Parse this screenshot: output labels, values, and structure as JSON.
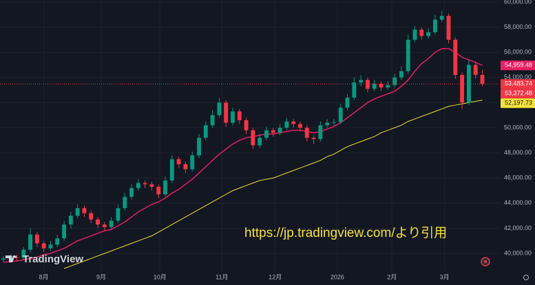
{
  "chart_data": {
    "type": "candlestick",
    "brand": "TradingView",
    "annotation": "https://jp.tradingview.com/より引用",
    "x": [
      0,
      1,
      2,
      3,
      4,
      5,
      6,
      7,
      8,
      9,
      10,
      11,
      12,
      13,
      14,
      15,
      16,
      17,
      18,
      19,
      20,
      21,
      22,
      23,
      24,
      25,
      26,
      27,
      28,
      29,
      30,
      31,
      32,
      33,
      34,
      35,
      36,
      37,
      38,
      39,
      40,
      41,
      42,
      43,
      44,
      45,
      46,
      47,
      48,
      49,
      50,
      51,
      52,
      53,
      54,
      55,
      56,
      57,
      58,
      59,
      60,
      61,
      62,
      63,
      64,
      65,
      66,
      67,
      68,
      69,
      70,
      71
    ],
    "open": [
      39500,
      39600,
      39700,
      39650,
      40300,
      41500,
      40800,
      40400,
      40700,
      41200,
      42300,
      43000,
      43600,
      43200,
      42700,
      42300,
      42100,
      42600,
      43600,
      44500,
      45200,
      45600,
      45500,
      45300,
      44700,
      45800,
      47500,
      47100,
      46700,
      47800,
      49200,
      50200,
      51000,
      52000,
      50400,
      51300,
      50600,
      49800,
      48600,
      49200,
      49800,
      49600,
      50000,
      50500,
      50300,
      50000,
      49200,
      49100,
      50200,
      50400,
      50450,
      51600,
      52400,
      53600,
      53800,
      53100,
      53500,
      53200,
      53400,
      54000,
      54500,
      57000,
      57800,
      57300,
      57600,
      58600,
      58900,
      57000,
      54200,
      52000,
      55000,
      54200
    ],
    "high": [
      39800,
      39900,
      39900,
      40500,
      42000,
      41700,
      41000,
      41000,
      41500,
      42600,
      43300,
      43900,
      43800,
      43400,
      42900,
      42500,
      42900,
      43900,
      44800,
      45500,
      45900,
      45800,
      45700,
      45500,
      46100,
      47800,
      47700,
      47300,
      48100,
      49500,
      50500,
      51400,
      52400,
      52200,
      51600,
      51500,
      50800,
      50000,
      49500,
      50100,
      50000,
      50300,
      50800,
      50700,
      50500,
      50200,
      49400,
      50500,
      50700,
      50700,
      51900,
      52700,
      54000,
      54200,
      54000,
      53800,
      53700,
      53700,
      54300,
      54900,
      57400,
      58100,
      58000,
      57900,
      59000,
      59300,
      59100,
      57200,
      54400,
      55400,
      55200,
      54600
    ],
    "low": [
      39300,
      39400,
      39400,
      39500,
      40100,
      40500,
      40100,
      40200,
      40500,
      41000,
      42000,
      42800,
      42900,
      42400,
      42000,
      41800,
      41900,
      42400,
      43400,
      44300,
      45000,
      45200,
      45000,
      44400,
      44500,
      45600,
      46800,
      46400,
      46500,
      47600,
      49000,
      50000,
      50800,
      50100,
      50200,
      50300,
      49500,
      48300,
      48400,
      49000,
      49300,
      49400,
      49800,
      50000,
      49700,
      48900,
      48700,
      48900,
      50000,
      50100,
      50300,
      51400,
      52200,
      53300,
      52800,
      52900,
      52900,
      53000,
      53200,
      53800,
      54300,
      56800,
      57000,
      57100,
      57400,
      58400,
      56700,
      53900,
      51500,
      51800,
      53900,
      53300
    ],
    "close": [
      39600,
      39700,
      39650,
      40300,
      41500,
      40800,
      40400,
      40700,
      41200,
      42300,
      43000,
      43600,
      43200,
      42700,
      42300,
      42100,
      42600,
      43600,
      44500,
      45200,
      45600,
      45500,
      45300,
      44700,
      45800,
      47500,
      47100,
      46700,
      47800,
      49200,
      50200,
      51000,
      52000,
      50400,
      51300,
      50600,
      49800,
      48600,
      49200,
      49800,
      49600,
      50000,
      50500,
      50300,
      50000,
      49200,
      49100,
      50200,
      50400,
      50450,
      51600,
      52400,
      53600,
      53800,
      53100,
      53500,
      53200,
      53400,
      54000,
      54500,
      57000,
      57800,
      57300,
      57600,
      58600,
      58900,
      57000,
      54200,
      52000,
      55000,
      54200,
      53483.74
    ],
    "up_color": "#089981",
    "down_color": "#f23645",
    "lines": [
      {
        "color": "#e91e63",
        "values": [
          39300,
          39350,
          39400,
          39500,
          39600,
          39700,
          39900,
          40000,
          40200,
          40400,
          40700,
          41000,
          41200,
          41400,
          41600,
          41800,
          41900,
          42200,
          42500,
          42900,
          43300,
          43600,
          43900,
          44100,
          44400,
          44800,
          45100,
          45500,
          45900,
          46400,
          46900,
          47400,
          47900,
          48300,
          48700,
          49000,
          49200,
          49300,
          49400,
          49500,
          49500,
          49600,
          49700,
          49800,
          49800,
          49700,
          49600,
          49700,
          49900,
          50100,
          50400,
          50800,
          51200,
          51600,
          52000,
          52300,
          52500,
          52700,
          52900,
          53300,
          53800,
          54500,
          55100,
          55500,
          56000,
          56300,
          56300,
          56000,
          55600,
          55400,
          55200,
          54959.48
        ]
      },
      {
        "color": "#f5e13b",
        "values": [
          null,
          null,
          null,
          null,
          null,
          null,
          null,
          null,
          null,
          38800,
          39000,
          39200,
          39400,
          39600,
          39800,
          40000,
          40200,
          40400,
          40600,
          40800,
          41000,
          41200,
          41400,
          41700,
          42000,
          42300,
          42600,
          42900,
          43200,
          43500,
          43800,
          44100,
          44400,
          44700,
          45000,
          45200,
          45400,
          45600,
          45800,
          45900,
          46000,
          46200,
          46400,
          46600,
          46800,
          47000,
          47200,
          47400,
          47700,
          47900,
          48200,
          48500,
          48700,
          48900,
          49100,
          49300,
          49600,
          49800,
          50000,
          50200,
          50500,
          50700,
          50900,
          51100,
          51300,
          51500,
          51700,
          51800,
          51900,
          52000,
          52100,
          52197.73
        ]
      }
    ],
    "price_labels": [
      {
        "value": 54959.48,
        "label": "54,959.48",
        "color": "#e91e63"
      },
      {
        "value": 53483.74,
        "label": "53,483.74",
        "color": "#f23645"
      },
      {
        "value": 53372.48,
        "label": "53,372.48",
        "color": "#f23645"
      },
      {
        "value": 52197.73,
        "label": "52,197.73",
        "color": "#f5e13b"
      }
    ],
    "xlim": [
      -0.5,
      73.5
    ],
    "xticks": [
      {
        "value": 6,
        "label": "8月"
      },
      {
        "value": 14.5,
        "label": "9月"
      },
      {
        "value": 23.2,
        "label": "10月"
      },
      {
        "value": 32.4,
        "label": "11月"
      },
      {
        "value": 40.3,
        "label": "12月"
      },
      {
        "value": 49.5,
        "label": "2026"
      },
      {
        "value": 57.6,
        "label": "2月"
      },
      {
        "value": 65.4,
        "label": "3月"
      }
    ],
    "ylim": [
      38580,
      60164
    ],
    "yticks": [
      {
        "value": 40000,
        "label": "40,000.00"
      },
      {
        "value": 42000,
        "label": "42,000.00"
      },
      {
        "value": 44000,
        "label": "44,000.00"
      },
      {
        "value": 46000,
        "label": "46,000.00"
      },
      {
        "value": 48000,
        "label": "48,000.00"
      },
      {
        "value": 50000,
        "label": "50,000.00"
      },
      {
        "value": 52000,
        "label": "52,000.00"
      },
      {
        "value": 54000,
        "label": "54,000.00"
      },
      {
        "value": 56000,
        "label": "56,000.00"
      },
      {
        "value": 58000,
        "label": "58,000.00"
      },
      {
        "value": 60000,
        "label": "60,000.00"
      }
    ],
    "grid": true
  }
}
